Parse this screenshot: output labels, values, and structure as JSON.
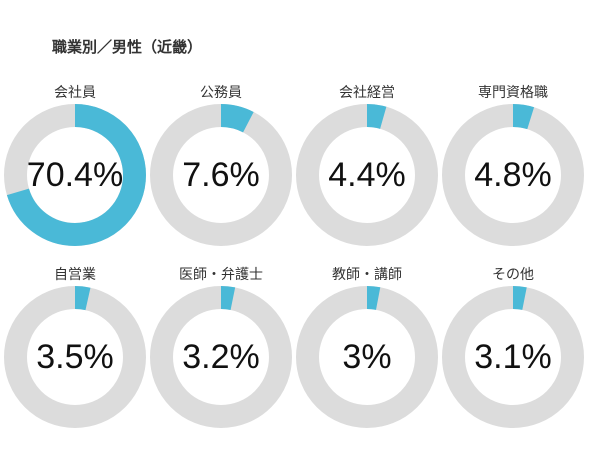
{
  "title": "職業別／男性（近畿）",
  "colors": {
    "accent": "#4ab9d7",
    "track": "#dcdcdc"
  },
  "chart_data": {
    "type": "pie",
    "categories": [
      "会社員",
      "公務員",
      "会社経営",
      "専門資格職",
      "自営業",
      "医師・弁護士",
      "教師・講師",
      "その他"
    ],
    "values": [
      70.4,
      7.6,
      4.4,
      4.8,
      3.5,
      3.2,
      3,
      3.1
    ],
    "value_labels": [
      "70.4%",
      "7.6%",
      "4.4%",
      "4.8%",
      "3.5%",
      "3.2%",
      "3%",
      "3.1%"
    ],
    "unit": "%"
  }
}
